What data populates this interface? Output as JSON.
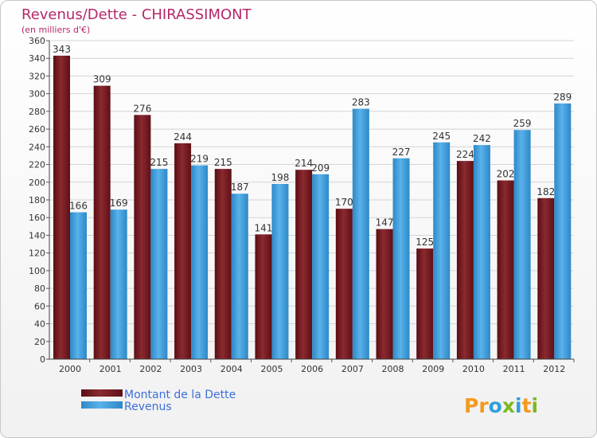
{
  "chart_data": {
    "type": "bar",
    "title": "Revenus/Dette - CHIRASSIMONT",
    "subtitle": "(en milliers d'€)",
    "categories": [
      "2000",
      "2001",
      "2002",
      "2003",
      "2004",
      "2005",
      "2006",
      "2007",
      "2008",
      "2009",
      "2010",
      "2011",
      "2012"
    ],
    "series": [
      {
        "name": "Montant de la Dette",
        "color": "#7a1a1f",
        "values": [
          343,
          309,
          276,
          244,
          215,
          141,
          214,
          170,
          147,
          125,
          224,
          202,
          182
        ]
      },
      {
        "name": "Revenus",
        "color": "#3d9ad8",
        "values": [
          166,
          169,
          215,
          219,
          187,
          198,
          209,
          283,
          227,
          245,
          242,
          259,
          289
        ]
      }
    ],
    "ylim": [
      0,
      360
    ],
    "ytick_step": 20,
    "grid": true,
    "legend_position": "bottom-left"
  },
  "brand": {
    "name": "Proxiti",
    "letters": [
      {
        "ch": "P",
        "color": "#f39a1e"
      },
      {
        "ch": "r",
        "color": "#f39a1e"
      },
      {
        "ch": "o",
        "color": "#2e9fd8"
      },
      {
        "ch": "x",
        "color": "#7cb820"
      },
      {
        "ch": "i",
        "color": "#2e9fd8"
      },
      {
        "ch": "t",
        "color": "#f39a1e"
      },
      {
        "ch": "i",
        "color": "#7cb820"
      }
    ]
  },
  "colors": {
    "title": "#b5286a",
    "legend_text": "#3d6fd8",
    "axis_text": "#333333"
  }
}
